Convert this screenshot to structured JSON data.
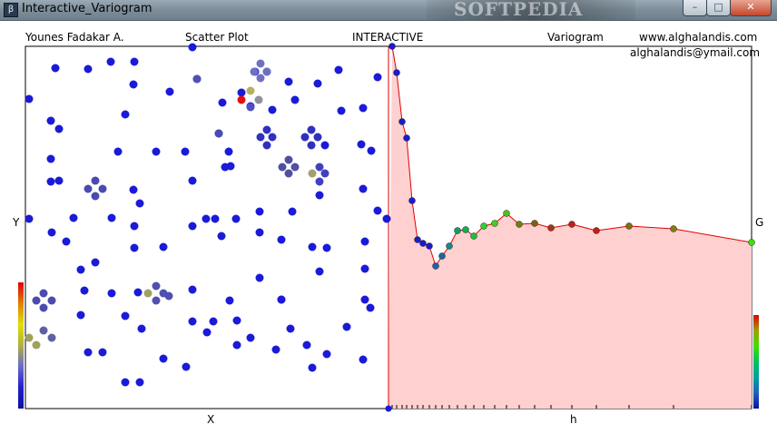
{
  "window": {
    "title": "Interactive_Variogram",
    "app_icon": "app-icon",
    "watermark": "SOFTPEDIA",
    "controls": {
      "minimize": "–",
      "maximize": "□",
      "close": "✕"
    }
  },
  "header": {
    "author": "Younes Fadakar A.",
    "scatter_title": "Scatter Plot",
    "mode": "INTERACTIVE",
    "variogram_title": "Variogram",
    "website": "www.alghalandis.com",
    "email": "alghalandis@ymail.com"
  },
  "scatter": {
    "xlabel": "X",
    "ylabel": "Y",
    "colorbar": [
      "#1010a0",
      "#2020d0",
      "#6a6ad0",
      "#b0b040",
      "#e0e000",
      "#e08000",
      "#e00000"
    ],
    "points_blue": [
      [
        61,
        75
      ],
      [
        97,
        76
      ],
      [
        122,
        68
      ],
      [
        148,
        68
      ],
      [
        212,
        52
      ],
      [
        32,
        109
      ],
      [
        147,
        93
      ],
      [
        187,
        101
      ],
      [
        245,
        113
      ],
      [
        217,
        87
      ],
      [
        56,
        133
      ],
      [
        65,
        142
      ],
      [
        138,
        126
      ],
      [
        130,
        167
      ],
      [
        172,
        167
      ],
      [
        204,
        167
      ],
      [
        252,
        167
      ],
      [
        241,
        147
      ],
      [
        254,
        183
      ],
      [
        56,
        175
      ],
      [
        56,
        200
      ],
      [
        65,
        199
      ],
      [
        32,
        241
      ],
      [
        147,
        209
      ],
      [
        154,
        224
      ],
      [
        212,
        199
      ],
      [
        248,
        184
      ],
      [
        81,
        240
      ],
      [
        57,
        256
      ],
      [
        73,
        266
      ],
      [
        123,
        240
      ],
      [
        148,
        249
      ],
      [
        212,
        249
      ],
      [
        237,
        241
      ],
      [
        227,
        241
      ],
      [
        244,
        260
      ],
      [
        148,
        273
      ],
      [
        180,
        272
      ],
      [
        260,
        241
      ],
      [
        286,
        233
      ],
      [
        286,
        256
      ],
      [
        310,
        264
      ],
      [
        322,
        233
      ],
      [
        358,
        160
      ],
      [
        376,
        122
      ],
      [
        400,
        119
      ],
      [
        416,
        85
      ],
      [
        373,
        77
      ],
      [
        350,
        92
      ],
      [
        325,
        110
      ],
      [
        318,
        90
      ],
      [
        300,
        121
      ],
      [
        398,
        159
      ],
      [
        409,
        166
      ],
      [
        352,
        215
      ],
      [
        400,
        208
      ],
      [
        416,
        232
      ],
      [
        426,
        241
      ],
      [
        402,
        266
      ],
      [
        344,
        272
      ],
      [
        360,
        273
      ],
      [
        352,
        299
      ],
      [
        402,
        296
      ],
      [
        89,
        297
      ],
      [
        105,
        289
      ],
      [
        93,
        320
      ],
      [
        123,
        323
      ],
      [
        138,
        348
      ],
      [
        89,
        347
      ],
      [
        152,
        322
      ],
      [
        212,
        319
      ],
      [
        253,
        331
      ],
      [
        286,
        306
      ],
      [
        310,
        330
      ],
      [
        261,
        353
      ],
      [
        235,
        354
      ],
      [
        212,
        354
      ],
      [
        156,
        362
      ],
      [
        228,
        366
      ],
      [
        261,
        380
      ],
      [
        276,
        372
      ],
      [
        320,
        362
      ],
      [
        310,
        330
      ],
      [
        382,
        360
      ],
      [
        360,
        390
      ],
      [
        402,
        330
      ],
      [
        408,
        339
      ],
      [
        400,
        396
      ],
      [
        338,
        380
      ],
      [
        344,
        405
      ],
      [
        304,
        385
      ],
      [
        180,
        395
      ],
      [
        97,
        388
      ],
      [
        113,
        388
      ],
      [
        205,
        404
      ],
      [
        138,
        421
      ],
      [
        154,
        421
      ],
      [
        281,
        79
      ],
      [
        294,
        79
      ],
      [
        266,
        102
      ],
      [
        276,
        117
      ]
    ],
    "clusters": [
      [
        [
          287,
          70,
          "#7070c0"
        ],
        [
          280,
          79,
          "#7070c0"
        ],
        [
          294,
          79,
          "#7070c0"
        ],
        [
          287,
          86,
          "#7070c0"
        ]
      ],
      [
        [
          276,
          100,
          "#b8b060"
        ],
        [
          266,
          110,
          "#e01010"
        ],
        [
          285,
          110,
          "#9090a0"
        ],
        [
          276,
          118,
          "#5050c0"
        ]
      ],
      [
        [
          294,
          143,
          "#3030c0"
        ],
        [
          287,
          151,
          "#3030c0"
        ],
        [
          300,
          151,
          "#3030c0"
        ],
        [
          294,
          160,
          "#3030c0"
        ]
      ],
      [
        [
          343,
          143,
          "#3030c0"
        ],
        [
          336,
          151,
          "#3030c0"
        ],
        [
          350,
          151,
          "#3030c0"
        ],
        [
          343,
          160,
          "#3030c0"
        ]
      ],
      [
        [
          318,
          176,
          "#5050a0"
        ],
        [
          311,
          184,
          "#5050a0"
        ],
        [
          325,
          184,
          "#5050a0"
        ],
        [
          318,
          191,
          "#5050a0"
        ]
      ],
      [
        [
          352,
          184,
          "#4040c0"
        ],
        [
          344,
          191,
          "#a0a070"
        ],
        [
          358,
          191,
          "#4040c0"
        ],
        [
          352,
          200,
          "#4040c0"
        ]
      ],
      [
        [
          105,
          199,
          "#4a4ab0"
        ],
        [
          97,
          208,
          "#4a4ab0"
        ],
        [
          113,
          208,
          "#4a4ab0"
        ],
        [
          105,
          216,
          "#4a4ab0"
        ]
      ],
      [
        [
          48,
          323,
          "#4a4ab0"
        ],
        [
          40,
          331,
          "#4a4ab0"
        ],
        [
          57,
          331,
          "#4a4ab0"
        ],
        [
          48,
          339,
          "#4a4ab0"
        ]
      ],
      [
        [
          172,
          315,
          "#5050b0"
        ],
        [
          163,
          323,
          "#a0a060"
        ],
        [
          180,
          323,
          "#5050b0"
        ],
        [
          172,
          331,
          "#5050b0"
        ]
      ],
      [
        [
          48,
          364,
          "#6060a0"
        ],
        [
          32,
          372,
          "#a0a060"
        ],
        [
          57,
          372,
          "#6060a0"
        ],
        [
          40,
          380,
          "#a0a060"
        ]
      ],
      [
        [
          186,
          326,
          "#5050b0"
        ],
        [
          217,
          87,
          "#5050b0"
        ],
        [
          241,
          147,
          "#4a4ab0"
        ]
      ]
    ]
  },
  "variogram": {
    "xlabel": "h",
    "ylabel": "G",
    "colorbar": [
      "#1010a0",
      "#2060c0",
      "#00a0a0",
      "#00c060",
      "#40e000",
      "#a0a000",
      "#e00000"
    ],
    "points": [
      [
        432,
        51,
        "#1a1ad0"
      ],
      [
        437,
        80,
        "#1a1ad0"
      ],
      [
        443,
        134,
        "#1a1ad0"
      ],
      [
        448,
        152,
        "#1a1ad0"
      ],
      [
        454,
        221,
        "#1a1ad0"
      ],
      [
        460,
        264,
        "#1a1ad0"
      ],
      [
        466,
        268,
        "#1a1ad0"
      ],
      [
        473,
        271,
        "#1a1ad0"
      ],
      [
        480,
        293,
        "#2060b0"
      ],
      [
        487,
        282,
        "#1a6a9a"
      ],
      [
        495,
        271,
        "#108a8a"
      ],
      [
        504,
        254,
        "#10a060"
      ],
      [
        513,
        253,
        "#10b050"
      ],
      [
        522,
        260,
        "#20c040"
      ],
      [
        533,
        249,
        "#30d030"
      ],
      [
        545,
        246,
        "#40d020"
      ],
      [
        558,
        235,
        "#50c020"
      ],
      [
        572,
        247,
        "#708010"
      ],
      [
        589,
        246,
        "#806010"
      ],
      [
        607,
        251,
        "#b03010"
      ],
      [
        630,
        247,
        "#c02010"
      ],
      [
        657,
        254,
        "#c02010"
      ],
      [
        693,
        249,
        "#807010"
      ],
      [
        742,
        252,
        "#808010"
      ],
      [
        828,
        267,
        "#40e000"
      ]
    ]
  }
}
